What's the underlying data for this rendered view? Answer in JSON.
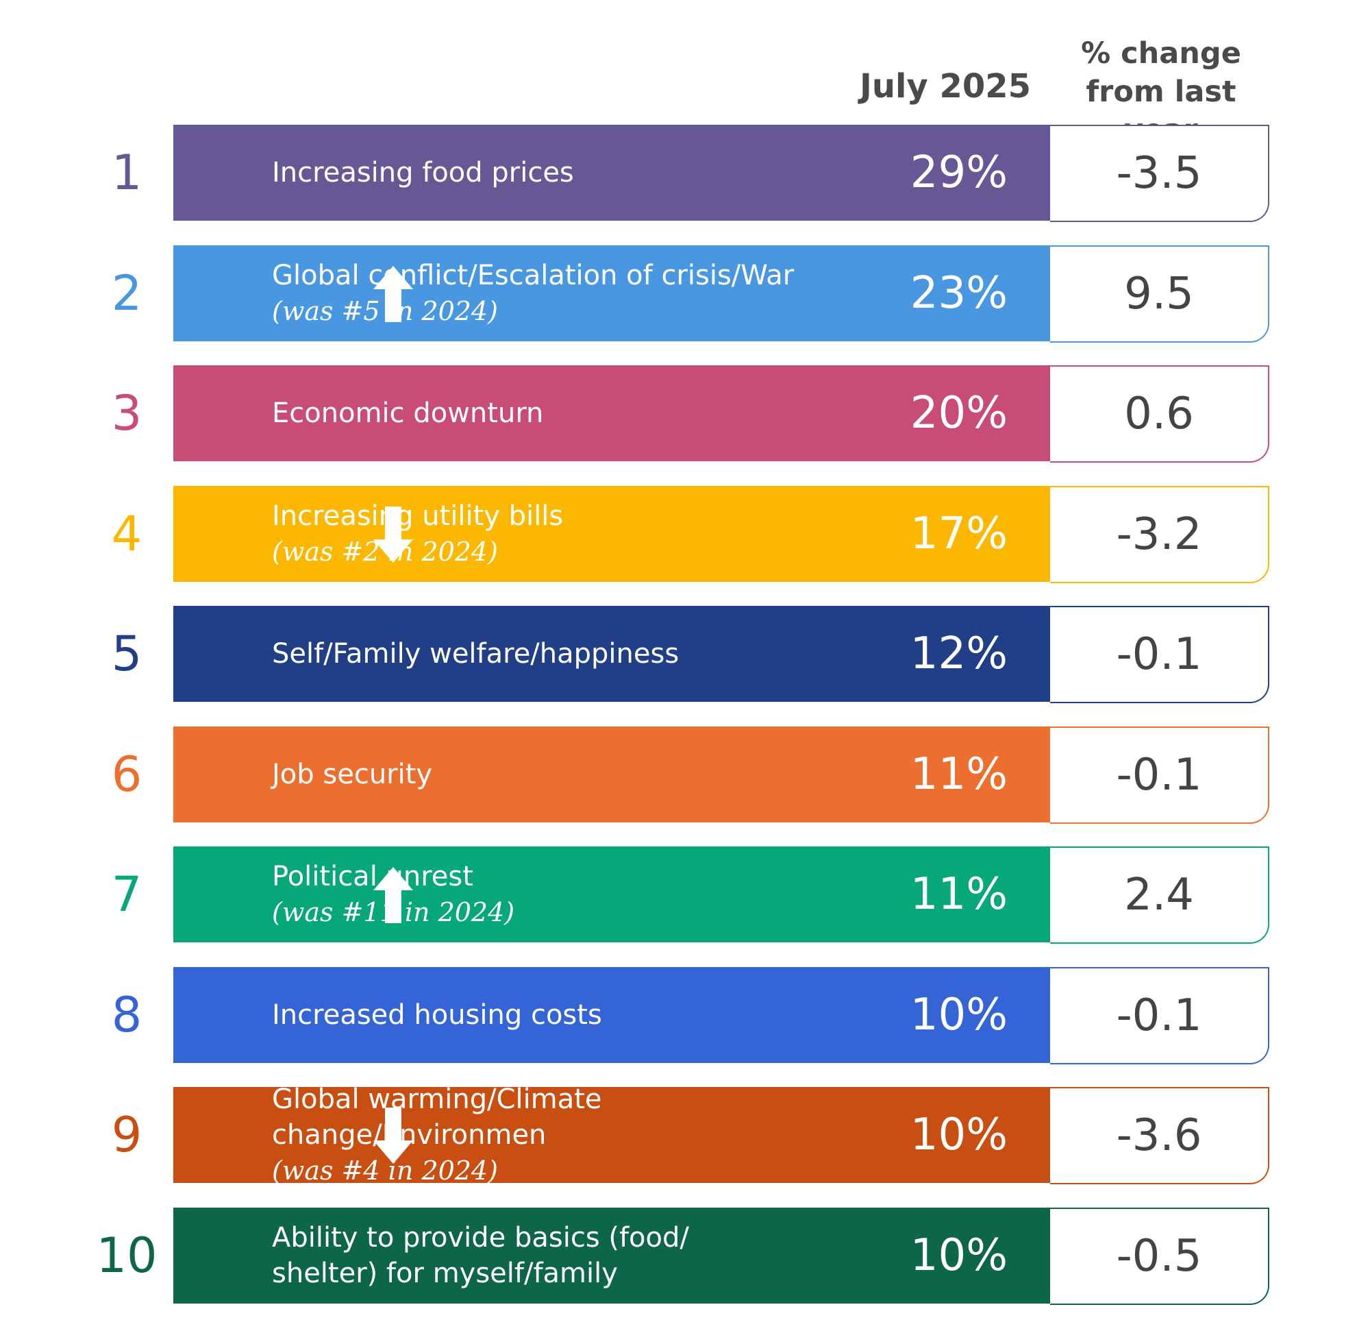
{
  "chart_data": {
    "type": "table",
    "columns": [
      "July 2025",
      "% change\nfrom last year"
    ],
    "rows": [
      {
        "rank": "1",
        "label": "Increasing food prices",
        "note": "",
        "arrow": "",
        "pct": "29%",
        "value": 29,
        "change": "-3.5",
        "color": "#665894"
      },
      {
        "rank": "2",
        "label": "Global conflict/Escalation of crisis/War",
        "note": "(was #5 in 2024)",
        "arrow": "up-arrow",
        "pct": "23%",
        "value": 23,
        "change": "9.5",
        "color": "#4a97e1"
      },
      {
        "rank": "3",
        "label": "Economic downturn",
        "note": "",
        "arrow": "",
        "pct": "20%",
        "value": 20,
        "change": "0.6",
        "color": "#c94b77"
      },
      {
        "rank": "4",
        "label": "Increasing utility bills",
        "note": "(was #2 in 2024)",
        "arrow": "down-arrow",
        "pct": "17%",
        "value": 17,
        "change": "-3.2",
        "color": "#fcb800"
      },
      {
        "rank": "5",
        "label": "Self/Family welfare/happiness",
        "note": "",
        "arrow": "",
        "pct": "12%",
        "value": 12,
        "change": "-0.1",
        "color": "#213f87"
      },
      {
        "rank": "6",
        "label": "Job security",
        "note": "",
        "arrow": "",
        "pct": "11%",
        "value": 11,
        "change": "-0.1",
        "color": "#ec6f2f"
      },
      {
        "rank": "7",
        "label": "Political unrest",
        "note": "(was #11 in 2024)",
        "arrow": "up-arrow",
        "pct": "11%",
        "value": 11,
        "change": "2.4",
        "color": "#06a778"
      },
      {
        "rank": "8",
        "label": "Increased housing costs",
        "note": "",
        "arrow": "",
        "pct": "10%",
        "value": 10,
        "change": "-0.1",
        "color": "#3564d6"
      },
      {
        "rank": "9",
        "label": "Global warming/Climate change/Environmen",
        "note": "(was #4 in 2024)",
        "arrow": "down-arrow",
        "pct": "10%",
        "value": 10,
        "change": "-3.6",
        "color": "#c84f11"
      },
      {
        "rank": "10",
        "label": "Ability to provide basics (food/\nshelter) for myself/family",
        "note": "",
        "arrow": "",
        "pct": "10%",
        "value": 10,
        "change": "-0.5",
        "color": "#0d654a"
      }
    ]
  }
}
